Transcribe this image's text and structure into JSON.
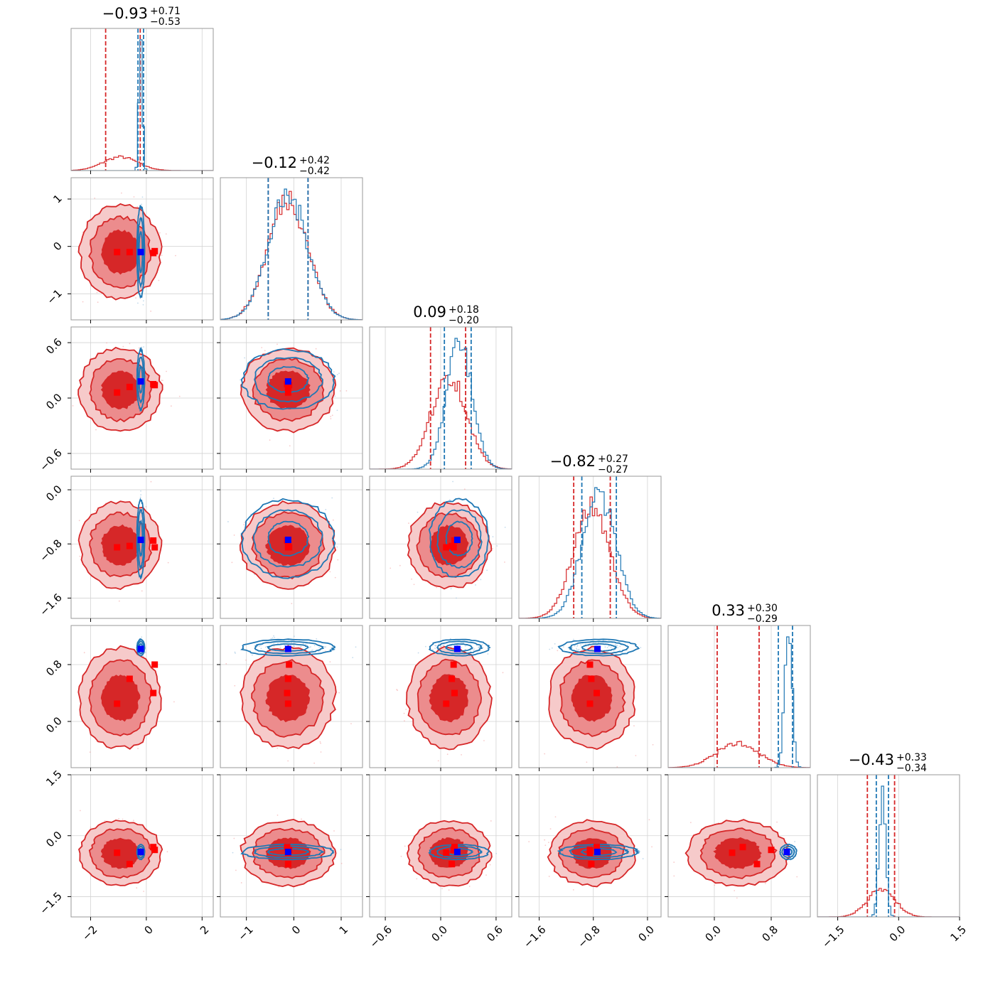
{
  "colors": {
    "red": "#d62728",
    "red_mid": "#ec8c8d",
    "red_light": "#f6caca",
    "blue": "#1f77b4",
    "marker_red": "#ff0000",
    "marker_blue": "#0000ff",
    "grid": "#d3d3d3",
    "frame": "#9a9a9a"
  },
  "chart_data": {
    "type": "corner",
    "grid": true,
    "series": [
      {
        "name": "",
        "color": "#d62728",
        "style": "filled contours (1-3 sigma) + histogram"
      },
      {
        "name": "",
        "color": "#1f77b4",
        "style": "contour lines + histogram"
      }
    ],
    "parameters": [
      {
        "range": [
          -2.7,
          2.4
        ],
        "ticks": [
          -2,
          0,
          2
        ],
        "tick_labels": [
          "−2",
          "0",
          "2"
        ],
        "red": {
          "median": -0.93,
          "q_lo": -1.46,
          "q_hi": -0.22,
          "sd": 0.62
        },
        "blue": {
          "median": -0.2,
          "q_lo": -0.3,
          "q_hi": -0.1,
          "sd": 0.06
        },
        "title": {
          "value": "−0.93",
          "plus": "+0.71",
          "minus": "−0.53"
        }
      },
      {
        "range": [
          -1.55,
          1.45
        ],
        "ticks": [
          -1,
          0,
          1
        ],
        "tick_labels": [
          "−1",
          "0",
          "1"
        ],
        "red": {
          "median": -0.12,
          "q_lo": -0.54,
          "q_hi": 0.3,
          "sd": 0.42
        },
        "blue": {
          "median": -0.12,
          "q_lo": -0.54,
          "q_hi": 0.3,
          "sd": 0.42
        },
        "title": {
          "value": "−0.12",
          "plus": "+0.42",
          "minus": "−0.42"
        }
      },
      {
        "range": [
          -0.77,
          0.77
        ],
        "ticks": [
          -0.6,
          0.0,
          0.6
        ],
        "tick_labels": [
          "−0.6",
          "0.0",
          "0.6"
        ],
        "red": {
          "median": 0.09,
          "q_lo": -0.11,
          "q_hi": 0.27,
          "sd": 0.19
        },
        "blue": {
          "median": 0.2,
          "q_lo": 0.04,
          "q_hi": 0.33,
          "sd": 0.14
        },
        "title": {
          "value": "0.09",
          "plus": "+0.18",
          "minus": "−0.20"
        }
      },
      {
        "range": [
          -1.9,
          0.2
        ],
        "ticks": [
          -1.6,
          -0.8,
          0.0
        ],
        "tick_labels": [
          "−1.6",
          "−0.8",
          "0.0"
        ],
        "red": {
          "median": -0.82,
          "q_lo": -1.09,
          "q_hi": -0.55,
          "sd": 0.27
        },
        "blue": {
          "median": -0.72,
          "q_lo": -0.97,
          "q_hi": -0.46,
          "sd": 0.25
        },
        "title": {
          "value": "−0.82",
          "plus": "+0.27",
          "minus": "−0.27"
        }
      },
      {
        "range": [
          -0.65,
          1.35
        ],
        "ticks": [
          0.0,
          0.8
        ],
        "tick_labels": [
          "0.0",
          "0.8"
        ],
        "red": {
          "median": 0.33,
          "q_lo": 0.04,
          "q_hi": 0.63,
          "sd": 0.3
        },
        "blue": {
          "median": 1.04,
          "q_lo": 0.9,
          "q_hi": 1.1,
          "sd": 0.05
        },
        "title": {
          "value": "0.33",
          "plus": "+0.30",
          "minus": "−0.29"
        }
      },
      {
        "range": [
          -2.0,
          1.5
        ],
        "ticks": [
          -1.5,
          0.0,
          1.5
        ],
        "tick_labels": [
          "−1.5",
          "0.0",
          "1.5"
        ],
        "red": {
          "median": -0.43,
          "q_lo": -0.77,
          "q_hi": -0.1,
          "sd": 0.34
        },
        "blue": {
          "median": -0.4,
          "q_lo": -0.55,
          "q_hi": -0.25,
          "sd": 0.08
        },
        "title": {
          "value": "−0.43",
          "plus": "+0.33",
          "minus": "−0.34"
        }
      }
    ],
    "markers": {
      "red_points": [
        [
          -1.05,
          -0.12,
          0.06,
          -0.85,
          0.25,
          -0.42
        ],
        [
          -0.6,
          -0.12,
          0.12,
          -0.83,
          0.6,
          -0.7
        ],
        [
          0.3,
          -0.1,
          0.14,
          -0.85,
          0.8,
          -0.35
        ],
        [
          0.25,
          -0.14,
          0.15,
          -0.75,
          0.4,
          -0.28
        ]
      ],
      "blue_point": [
        -0.2,
        -0.12,
        0.18,
        -0.74,
        1.02,
        -0.4
      ]
    }
  }
}
